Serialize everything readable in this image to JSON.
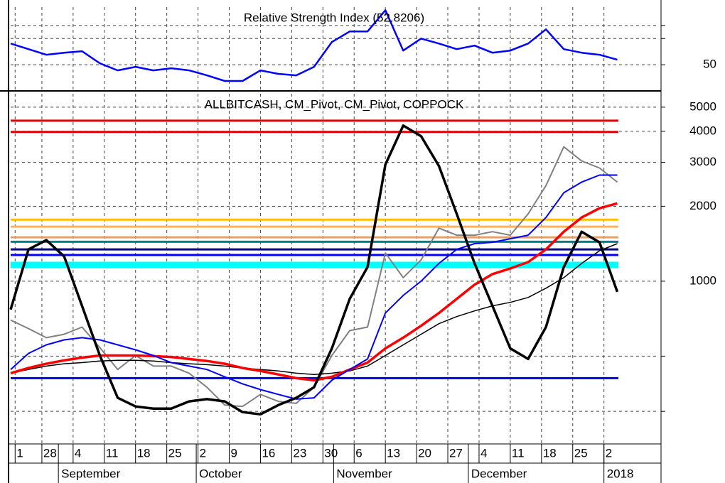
{
  "chart_data": [
    {
      "type": "line",
      "title": "Relative Strength Index (52.8206)",
      "x": [
        0,
        4,
        8,
        12,
        16,
        20,
        24,
        28,
        32,
        36,
        40,
        44,
        48,
        52,
        56,
        60,
        64,
        68,
        72,
        76,
        80,
        84,
        88,
        92,
        96,
        100,
        104,
        108,
        112,
        116,
        120,
        124,
        128,
        132,
        136
      ],
      "xlim": [
        0,
        145
      ],
      "ylim": [
        30,
        94
      ],
      "yticks": [
        50
      ],
      "minor_yticks": [
        70,
        80
      ],
      "grid": true,
      "series": [
        {
          "color": "#0000ff",
          "values": [
            66.2,
            61.9,
            57.6,
            59.2,
            60.3,
            51.1,
            45.7,
            48.4,
            45.7,
            47.3,
            45.7,
            41.9,
            37.6,
            37.6,
            45.7,
            43.0,
            41.9,
            48.4,
            67.3,
            75.4,
            75.4,
            91.6,
            60.8,
            70.0,
            66.2,
            61.9,
            64.6,
            59.2,
            60.8,
            66.2,
            77.0,
            61.9,
            59.2,
            57.6,
            53.8
          ]
        }
      ]
    },
    {
      "type": "line",
      "title": "ALLBITCASH, CM_Pivot, CM_Pivot, COPPOCK",
      "log_scale": true,
      "grid": true,
      "x": [
        0,
        4,
        8,
        12,
        16,
        20,
        24,
        28,
        32,
        36,
        40,
        44,
        48,
        52,
        56,
        60,
        64,
        68,
        72,
        76,
        80,
        84,
        88,
        92,
        96,
        100,
        104,
        108,
        112,
        116,
        120,
        124,
        128,
        132,
        136
      ],
      "xlim": [
        0,
        145
      ],
      "ylim": [
        222,
        5660
      ],
      "yticks": [
        1000,
        2000,
        3000,
        4000,
        5000
      ],
      "minor_yticks": [
        300,
        500
      ],
      "xticks": [
        {
          "value": 1,
          "label": "1"
        },
        {
          "value": 7,
          "label": "28"
        },
        {
          "value": 14,
          "label": "4"
        },
        {
          "value": 21,
          "label": "11"
        },
        {
          "value": 28,
          "label": "18"
        },
        {
          "value": 35,
          "label": "25"
        },
        {
          "value": 42,
          "label": "2"
        },
        {
          "value": 49,
          "label": "9"
        },
        {
          "value": 56,
          "label": "16"
        },
        {
          "value": 63,
          "label": "23"
        },
        {
          "value": 70,
          "label": "30"
        },
        {
          "value": 77,
          "label": "6"
        },
        {
          "value": 84,
          "label": "13"
        },
        {
          "value": 91,
          "label": "20"
        },
        {
          "value": 98,
          "label": "27"
        },
        {
          "value": 105,
          "label": "4"
        },
        {
          "value": 112,
          "label": "11"
        },
        {
          "value": 119,
          "label": "18"
        },
        {
          "value": 126,
          "label": "25"
        },
        {
          "value": 133,
          "label": "2"
        }
      ],
      "month_ticks": [
        {
          "value": 10.7,
          "label": "September"
        },
        {
          "value": 41.6,
          "label": "October"
        },
        {
          "value": 72.4,
          "label": "November"
        },
        {
          "value": 102.6,
          "label": "December"
        },
        {
          "value": 133,
          "label": "2018"
        }
      ],
      "hlines": [
        {
          "value": 4414,
          "color": "#e00000"
        },
        {
          "value": 3975,
          "color": "#e00000"
        },
        {
          "value": 1766,
          "color": "#ffc000"
        },
        {
          "value": 1655,
          "color": "#ffb060"
        },
        {
          "value": 1500,
          "color": "#e8a060"
        },
        {
          "value": 1440,
          "color": "#008080"
        },
        {
          "value": 1342,
          "color": "#000080"
        },
        {
          "value": 1274,
          "color": "#0000ff"
        },
        {
          "value": 1162,
          "color": "#00ffff"
        },
        {
          "value": 408,
          "color": "#0000dd"
        }
      ],
      "series": [
        {
          "color": "#808080",
          "values": [
            698,
            645,
            593,
            612,
            654,
            541,
            442,
            503,
            456,
            456,
            427,
            375,
            318,
            314,
            351,
            329,
            323,
            375,
            503,
            633,
            654,
            1299,
            1033,
            1217,
            1633,
            1530,
            1530,
            1580,
            1530,
            1862,
            2420,
            3466,
            3041,
            2849,
            2500
          ]
        },
        {
          "color": "#000000",
          "values": [
            427,
            442,
            456,
            466,
            471,
            478,
            481,
            481,
            478,
            471,
            466,
            462,
            456,
            448,
            442,
            436,
            427,
            422,
            427,
            436,
            456,
            503,
            555,
            612,
            675,
            721,
            760,
            796,
            822,
            860,
            937,
            1033,
            1178,
            1325,
            1415
          ]
        },
        {
          "color": "#ff0000",
          "values": [
            427,
            448,
            466,
            481,
            493,
            503,
            503,
            503,
            500,
            496,
            487,
            478,
            466,
            448,
            436,
            422,
            408,
            400,
            413,
            442,
            471,
            537,
            593,
            662,
            745,
            849,
            968,
            1068,
            1125,
            1193,
            1342,
            1580,
            1802,
            1963,
            2054
          ]
        },
        {
          "color": "#0000ff",
          "values": [
            442,
            513,
            555,
            581,
            593,
            581,
            555,
            530,
            503,
            471,
            456,
            442,
            413,
            387,
            367,
            351,
            336,
            340,
            400,
            442,
            487,
            745,
            877,
            1000,
            1178,
            1342,
            1415,
            1433,
            1481,
            1530,
            1802,
            2265,
            2500,
            2668,
            2668
          ]
        },
        {
          "color": "#000000",
          "values": [
            770,
            1342,
            1462,
            1257,
            796,
            503,
            340,
            314,
            308,
            308,
            329,
            336,
            329,
            298,
            292,
            318,
            340,
            375,
            537,
            849,
            1140,
            2942,
            4217,
            3823,
            2904,
            1862,
            1178,
            796,
            537,
            487,
            654,
            1140,
            1580,
            1433,
            906
          ]
        }
      ]
    }
  ]
}
